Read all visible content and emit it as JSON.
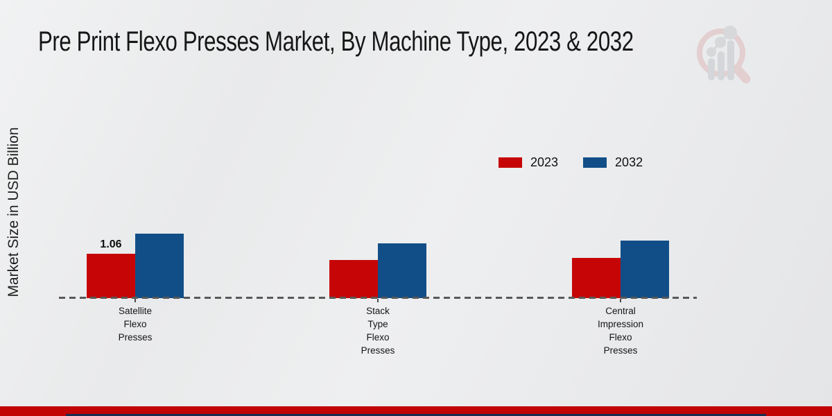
{
  "title": "Pre Print Flexo Presses Market, By Machine Type, 2023 & 2032",
  "y_axis_label": "Market Size in USD Billion",
  "legend": [
    {
      "label": "2023",
      "color": "#c60606"
    },
    {
      "label": "2032",
      "color": "#114e87"
    }
  ],
  "chart_data": {
    "type": "bar",
    "categories": [
      "Satellite Flexo Presses",
      "Stack Type Flexo Presses",
      "Central Impression Flexo Presses"
    ],
    "category_lines": [
      [
        "Satellite",
        "Flexo",
        "Presses"
      ],
      [
        "Stack",
        "Type",
        "Flexo",
        "Presses"
      ],
      [
        "Central",
        "Impression",
        "Flexo",
        "Presses"
      ]
    ],
    "series": [
      {
        "name": "2023",
        "color": "#c60606",
        "values": [
          1.06,
          0.91,
          0.96
        ]
      },
      {
        "name": "2032",
        "color": "#114e87",
        "values": [
          1.54,
          1.31,
          1.37
        ]
      }
    ],
    "data_labels": [
      {
        "series": "2023",
        "category_index": 0,
        "text": "1.06"
      }
    ],
    "title": "Pre Print Flexo Presses Market, By Machine Type, 2023 & 2032",
    "xlabel": "",
    "ylabel": "Market Size in USD Billion",
    "ylim": [
      0,
      2.2
    ],
    "grid": false,
    "legend_position": "upper-right",
    "baseline_style": "dashed"
  },
  "branding": {
    "logo_name": "market-research-future-logo",
    "bottom_bar_red": "#c20404",
    "bottom_bar_navy": "#1c2b50"
  }
}
